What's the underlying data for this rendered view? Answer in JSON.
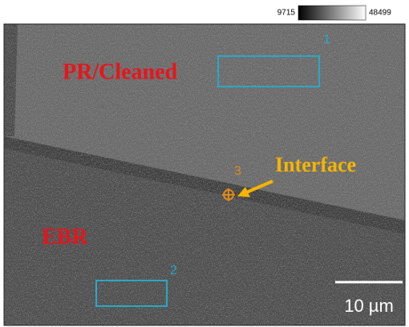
{
  "colorbar": {
    "min": 9715,
    "max": 48499
  },
  "annotations": {
    "region_top": "PR/Cleaned",
    "region_bottom": "EBR",
    "interface": "Interface"
  },
  "markers": [
    {
      "label": "1"
    },
    {
      "label": "2"
    },
    {
      "label": "3"
    }
  ],
  "scale_bar": {
    "label": "10 µm"
  }
}
